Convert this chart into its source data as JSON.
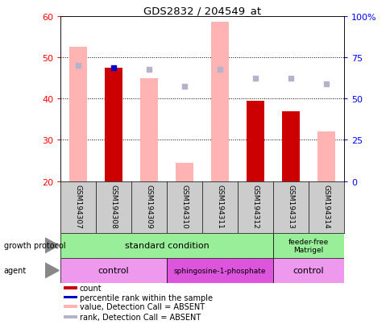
{
  "title": "GDS2832 / 204549_at",
  "samples": [
    "GSM194307",
    "GSM194308",
    "GSM194309",
    "GSM194310",
    "GSM194311",
    "GSM194312",
    "GSM194313",
    "GSM194314"
  ],
  "count_values": [
    null,
    47.5,
    null,
    null,
    null,
    39.5,
    37.0,
    null
  ],
  "rank_values": [
    null,
    47.5,
    null,
    null,
    null,
    null,
    null,
    null
  ],
  "absent_value_bars": [
    52.5,
    null,
    45.0,
    24.5,
    58.5,
    null,
    null,
    32.0
  ],
  "absent_rank_dots": [
    48.0,
    null,
    47.0,
    43.0,
    47.0,
    45.0,
    45.0,
    43.5
  ],
  "ylim_left": [
    20,
    60
  ],
  "ylim_right": [
    0,
    100
  ],
  "yticks_left": [
    20,
    30,
    40,
    50,
    60
  ],
  "yticks_right": [
    0,
    25,
    50,
    75,
    100
  ],
  "ytick_labels_right": [
    "0",
    "25",
    "50",
    "75",
    "100%"
  ],
  "color_count": "#cc0000",
  "color_rank": "#0000cc",
  "color_absent_value": "#ffb3b3",
  "color_absent_rank": "#b3b3cc",
  "color_gp_standard": "#99ee99",
  "color_gp_feeder": "#99ee99",
  "color_agent_control": "#ee99ee",
  "color_agent_sphingo": "#dd55dd",
  "legend_items": [
    {
      "color": "#cc0000",
      "label": "count",
      "marker": "square"
    },
    {
      "color": "#0000cc",
      "label": "percentile rank within the sample",
      "marker": "square"
    },
    {
      "color": "#ffb3b3",
      "label": "value, Detection Call = ABSENT",
      "marker": "square"
    },
    {
      "color": "#b3b3cc",
      "label": "rank, Detection Call = ABSENT",
      "marker": "square"
    }
  ]
}
